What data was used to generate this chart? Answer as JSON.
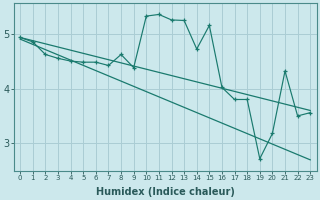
{
  "xlabel": "Humidex (Indice chaleur)",
  "ylabel": "",
  "background_color": "#cce8ec",
  "line_color": "#1a7a6e",
  "grid_color": "#aacdd4",
  "x_values": [
    0,
    1,
    2,
    3,
    4,
    5,
    6,
    7,
    8,
    9,
    10,
    11,
    12,
    13,
    14,
    15,
    16,
    17,
    18,
    19,
    20,
    21,
    22,
    23
  ],
  "series1": [
    4.93,
    4.85,
    4.62,
    4.55,
    4.5,
    4.48,
    4.48,
    4.42,
    4.62,
    4.38,
    5.32,
    5.35,
    5.25,
    5.24,
    4.72,
    5.15,
    4.02,
    3.8,
    3.8,
    2.72,
    3.18,
    4.32,
    3.5,
    3.56
  ],
  "series2_x": [
    0,
    23
  ],
  "series2_y": [
    4.93,
    3.6
  ],
  "series3_x": [
    0,
    23
  ],
  "series3_y": [
    4.9,
    2.7
  ],
  "ylim": [
    2.5,
    5.55
  ],
  "yticks": [
    3,
    4,
    5
  ],
  "xticks": [
    0,
    1,
    2,
    3,
    4,
    5,
    6,
    7,
    8,
    9,
    10,
    11,
    12,
    13,
    14,
    15,
    16,
    17,
    18,
    19,
    20,
    21,
    22,
    23
  ]
}
